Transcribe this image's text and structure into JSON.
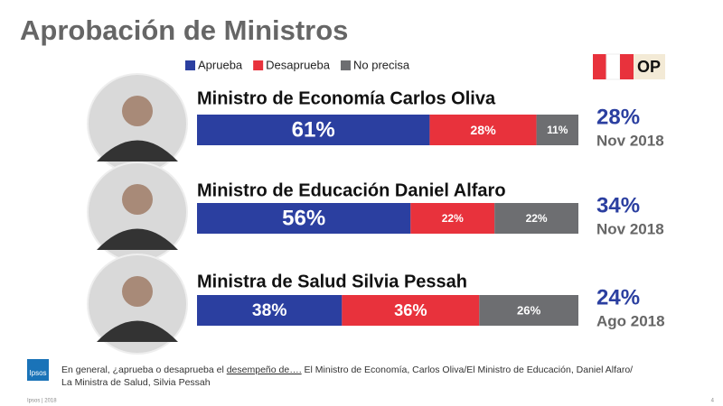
{
  "chart_data": {
    "type": "bar",
    "orientation": "horizontal",
    "stacked": true,
    "title": "Aprobación de Ministros",
    "categories": [
      "Ministro de Economía Carlos Oliva",
      "Ministro de Educación Daniel Alfaro",
      "Ministra de Salud Silvia Pessah"
    ],
    "series": [
      {
        "name": "Aprueba",
        "color": "#2b3fa0",
        "values": [
          61,
          56,
          38
        ],
        "value_labels": [
          "61%",
          "56%",
          "38%"
        ]
      },
      {
        "name": "Desaprueba",
        "color": "#e8323c",
        "values": [
          28,
          22,
          36
        ],
        "value_labels": [
          "28%",
          "22%",
          "36%"
        ]
      },
      {
        "name": "No precisa",
        "color": "#6d6e71",
        "values": [
          11,
          22,
          26
        ],
        "value_labels": [
          "11%",
          "22%",
          "26%"
        ]
      }
    ],
    "xlim": [
      0,
      100
    ],
    "previous": {
      "values": [
        28,
        34,
        24
      ],
      "value_labels": [
        "28%",
        "34%",
        "24%"
      ],
      "dates": [
        "Nov 2018",
        "Nov 2018",
        "Ago 2018"
      ]
    },
    "badge": "OP"
  },
  "footer": {
    "logo": "Ipsos",
    "question": [
      "En general, ¿aprueba o desaprueba el ",
      "desempeño de….",
      " El Ministro de Economía, Carlos Oliva/El Ministro de Educación, Daniel Alfaro/"
    ],
    "question_line2": "La Ministra de Salud, Silvia Pessah",
    "source": "Ipsos | 2018",
    "page": "4"
  }
}
